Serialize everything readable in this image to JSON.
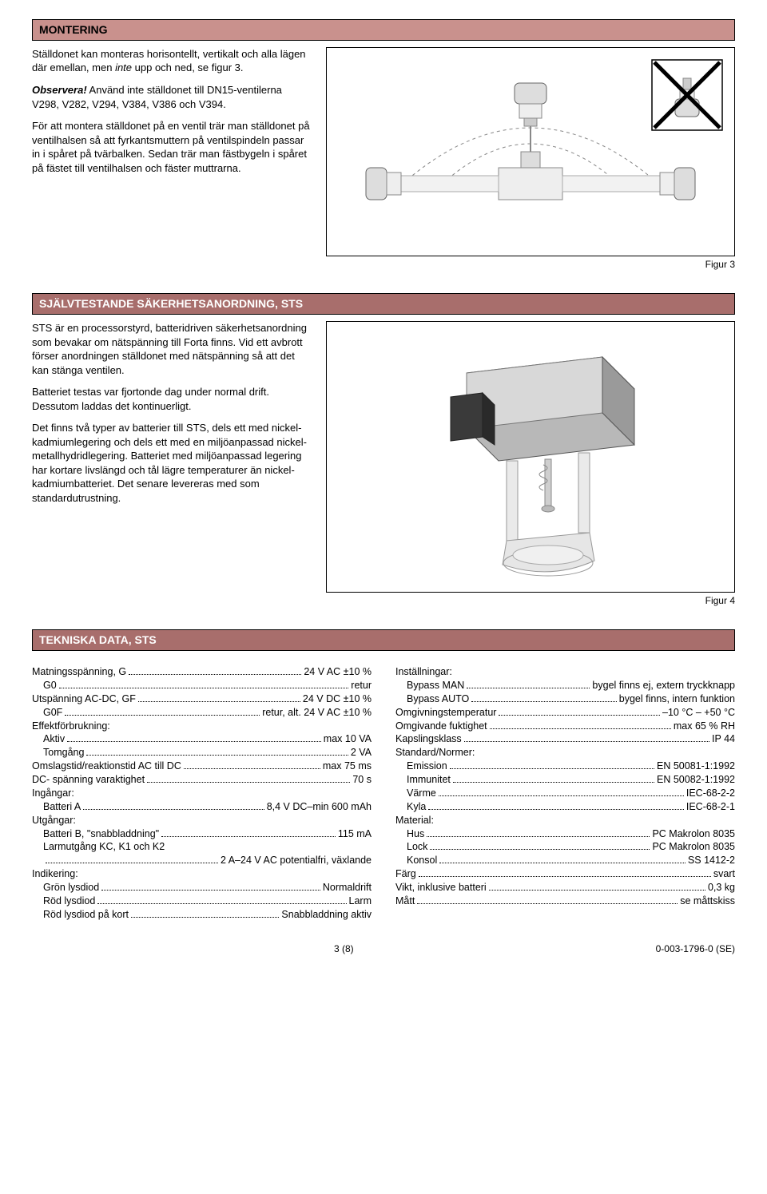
{
  "section1": {
    "title": "MONTERING",
    "p1_a": "Ställdonet kan monteras horisontellt, vertikalt och alla lägen där emellan, men ",
    "p1_italic": "inte",
    "p1_b": " upp och ned, se figur 3.",
    "observera_label": "Observera!",
    "observera_text": " Använd inte ställdonet till DN15-ventilerna V298, V282, V294, V384, V386 och V394.",
    "p3": "För att montera ställdonet på en ventil trär man ställdonet på ventilhalsen så att fyrkantsmuttern på ventilspindeln passar in i spåret på tvärbalken. Sedan trär man fästbygeln i spåret på fästet till ventilhalsen och fäster muttrarna.",
    "fig_label": "Figur 3"
  },
  "section2": {
    "title": "SJÄLVTESTANDE SÄKERHETSANORDNING, STS",
    "p1": "STS är en processorstyrd, batteridriven säkerhetsanordning som bevakar om nätspänning till Forta finns. Vid ett avbrott förser anordningen ställdonet med nätspänning så att det kan stänga ventilen.",
    "p2": "Batteriet testas var fjortonde dag under normal drift. Dessutom laddas det kontinuerligt.",
    "p3": "Det finns två typer av batterier till STS, dels ett med nickel-kadmiumlegering och dels ett med en miljöanpassad nickel-metallhydridlegering. Batteriet med miljöanpassad legering har kortare livslängd och tål lägre temperaturer än nickel-kadmiumbatteriet. Det senare levereras med som standardutrustning.",
    "fig_label": "Figur 4"
  },
  "section3": {
    "title": "TEKNISKA DATA, STS",
    "left": [
      {
        "label": "Matningsspänning, G",
        "val": "24 V AC ±10 %",
        "indent": 0
      },
      {
        "label": "G0",
        "val": "retur",
        "indent": 1
      },
      {
        "label": "Utspänning AC-DC, GF",
        "val": "24 V DC ±10 %",
        "indent": 0
      },
      {
        "label": "G0F",
        "val": "retur, alt. 24 V AC ±10 %",
        "indent": 1
      },
      {
        "label": "Effektförbrukning:",
        "val": "",
        "indent": 0,
        "nodots": true
      },
      {
        "label": "Aktiv",
        "val": "max 10 VA",
        "indent": 1
      },
      {
        "label": "Tomgång",
        "val": "2 VA",
        "indent": 1
      },
      {
        "label": "Omslagstid/reaktionstid AC till DC",
        "val": "max 75 ms",
        "indent": 0
      },
      {
        "label": "DC- spänning varaktighet",
        "val": "70 s",
        "indent": 0
      },
      {
        "label": "Ingångar:",
        "val": "",
        "indent": 0,
        "nodots": true
      },
      {
        "label": "Batteri A",
        "val": "8,4 V DC–min 600 mAh",
        "indent": 1
      },
      {
        "label": "Utgångar:",
        "val": "",
        "indent": 0,
        "nodots": true
      },
      {
        "label": "Batteri B, \"snabbladdning\"",
        "val": "115 mA",
        "indent": 1
      },
      {
        "label": "Larmutgång KC, K1 och K2",
        "val": "",
        "indent": 1
      },
      {
        "label": "",
        "val": "2 A–24 V AC potentialfri, växlande",
        "indent": 1
      },
      {
        "label": "Indikering:",
        "val": "",
        "indent": 0,
        "nodots": true
      },
      {
        "label": "Grön lysdiod",
        "val": "Normaldrift",
        "indent": 1
      },
      {
        "label": "Röd lysdiod",
        "val": "Larm",
        "indent": 1
      },
      {
        "label": "Röd lysdiod på kort",
        "val": "Snabbladdning aktiv",
        "indent": 1
      }
    ],
    "right": [
      {
        "label": "Inställningar:",
        "val": "",
        "indent": 0,
        "nodots": true
      },
      {
        "label": "Bypass MAN",
        "val": "bygel finns ej, extern tryckknapp",
        "indent": 1
      },
      {
        "label": "Bypass AUTO",
        "val": "bygel finns, intern funktion",
        "indent": 1
      },
      {
        "label": "Omgivningstemperatur",
        "val": "–10 °C – +50 °C",
        "indent": 0
      },
      {
        "label": "Omgivande fuktighet",
        "val": "max 65 % RH",
        "indent": 0
      },
      {
        "label": "Kapslingsklass",
        "val": "IP 44",
        "indent": 0
      },
      {
        "label": "Standard/Normer:",
        "val": "",
        "indent": 0,
        "nodots": true
      },
      {
        "label": "Emission",
        "val": "EN 50081-1:1992",
        "indent": 1
      },
      {
        "label": "Immunitet",
        "val": "EN 50082-1:1992",
        "indent": 1
      },
      {
        "label": "Värme",
        "val": "IEC-68-2-2",
        "indent": 1
      },
      {
        "label": "Kyla",
        "val": "IEC-68-2-1",
        "indent": 1
      },
      {
        "label": "Material:",
        "val": "",
        "indent": 0,
        "nodots": true
      },
      {
        "label": "Hus",
        "val": "PC Makrolon 8035",
        "indent": 1
      },
      {
        "label": "Lock",
        "val": "PC Makrolon 8035",
        "indent": 1
      },
      {
        "label": "Konsol",
        "val": "SS 1412-2",
        "indent": 1
      },
      {
        "label": "Färg",
        "val": "svart",
        "indent": 0
      },
      {
        "label": "Vikt, inklusive batteri",
        "val": "0,3 kg",
        "indent": 0
      },
      {
        "label": "Mått",
        "val": "se måttskiss",
        "indent": 0
      }
    ]
  },
  "footer": {
    "page": "3 (8)",
    "docnum": "0-003-1796-0 (SE)"
  },
  "colors": {
    "header_light": "#c9918d",
    "header_dark": "#a86e6c",
    "text": "#000000",
    "bg": "#ffffff"
  }
}
